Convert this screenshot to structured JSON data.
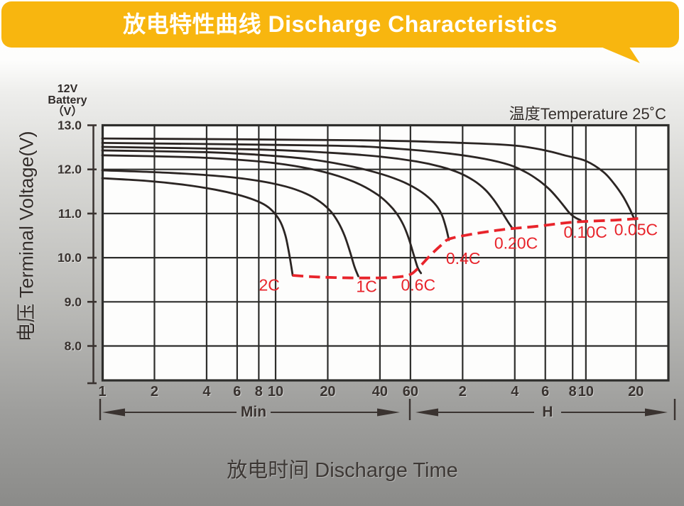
{
  "banner": {
    "title": "放电特性曲线 Discharge Characteristics",
    "color": "#F8B60F"
  },
  "battery_label": {
    "line1": "12V",
    "line2": "Battery",
    "line3": "（V）"
  },
  "temperature_note": "温度Temperature 25˚C",
  "y_axis_title": "电压 Terminal Voltage(V)",
  "x_axis_title": "放电时间 Discharge Time",
  "range_labels": {
    "minutes": "Min",
    "hours": "H"
  },
  "chart_data": {
    "type": "line",
    "x_scale": "log-time-minutes",
    "xlim_minutes": [
      1,
      1887
    ],
    "ylim": [
      7.29,
      13
    ],
    "grid": true,
    "x_ticks": [
      {
        "label": "1",
        "t": 1
      },
      {
        "label": "2",
        "t": 2
      },
      {
        "label": "4",
        "t": 4
      },
      {
        "label": "6",
        "t": 6
      },
      {
        "label": "8",
        "t": 8
      },
      {
        "label": "10",
        "t": 10
      },
      {
        "label": "20",
        "t": 20
      },
      {
        "label": "40",
        "t": 40
      },
      {
        "label": "60",
        "t": 60
      },
      {
        "label": "2",
        "t": 120
      },
      {
        "label": "4",
        "t": 240
      },
      {
        "label": "6",
        "t": 360
      },
      {
        "label": "8",
        "t": 480
      },
      {
        "label": "10",
        "t": 600
      },
      {
        "label": "20",
        "t": 1200
      }
    ],
    "y_ticks": [
      {
        "label": "13.0",
        "v": 13
      },
      {
        "label": "12.0",
        "v": 12
      },
      {
        "label": "11.0",
        "v": 11
      },
      {
        "label": "10.0",
        "v": 10
      },
      {
        "label": "9.0",
        "v": 9
      },
      {
        "label": "8.0",
        "v": 8
      }
    ],
    "series": [
      {
        "name": "2C",
        "label_at": [
          9.2,
          9.4
        ],
        "points": [
          [
            1,
            11.8
          ],
          [
            1.8,
            11.74
          ],
          [
            3,
            11.65
          ],
          [
            4.5,
            11.54
          ],
          [
            6,
            11.43
          ],
          [
            7.5,
            11.31
          ],
          [
            8.8,
            11.18
          ],
          [
            9.8,
            11.02
          ],
          [
            10.7,
            10.8
          ],
          [
            11.4,
            10.5
          ],
          [
            11.9,
            10.15
          ],
          [
            12.3,
            9.82
          ],
          [
            12.55,
            9.6
          ]
        ]
      },
      {
        "name": "1C",
        "label_at": [
          33.5,
          9.37
        ],
        "points": [
          [
            1,
            11.98
          ],
          [
            2.5,
            11.92
          ],
          [
            5,
            11.84
          ],
          [
            8,
            11.74
          ],
          [
            11.5,
            11.61
          ],
          [
            15,
            11.45
          ],
          [
            18,
            11.27
          ],
          [
            20.8,
            11.05
          ],
          [
            23,
            10.8
          ],
          [
            25,
            10.5
          ],
          [
            26.8,
            10.15
          ],
          [
            28.5,
            9.8
          ],
          [
            30,
            9.58
          ]
        ]
      },
      {
        "name": "0.6C",
        "label_at": [
          66.5,
          9.4
        ],
        "points": [
          [
            1,
            12.32
          ],
          [
            3,
            12.28
          ],
          [
            6,
            12.22
          ],
          [
            10,
            12.14
          ],
          [
            16,
            12.01
          ],
          [
            23,
            11.85
          ],
          [
            31,
            11.65
          ],
          [
            39,
            11.42
          ],
          [
            45,
            11.21
          ],
          [
            50,
            11.0
          ],
          [
            54.5,
            10.75
          ],
          [
            58.5,
            10.45
          ],
          [
            62.5,
            10.08
          ],
          [
            66,
            9.78
          ],
          [
            69,
            9.65
          ]
        ]
      },
      {
        "name": "0.4C",
        "label_at": [
          121,
          10.0
        ],
        "points": [
          [
            1,
            12.43
          ],
          [
            4,
            12.39
          ],
          [
            8,
            12.33
          ],
          [
            15,
            12.24
          ],
          [
            25,
            12.1
          ],
          [
            38,
            11.93
          ],
          [
            52,
            11.75
          ],
          [
            65,
            11.56
          ],
          [
            76,
            11.37
          ],
          [
            85,
            11.17
          ],
          [
            91.5,
            10.95
          ],
          [
            96.5,
            10.66
          ],
          [
            100,
            10.4
          ]
        ]
      },
      {
        "name": "0.20C",
        "label_at": [
          244,
          10.35
        ],
        "points": [
          [
            1,
            12.51
          ],
          [
            8,
            12.45
          ],
          [
            20,
            12.38
          ],
          [
            40,
            12.29
          ],
          [
            65,
            12.18
          ],
          [
            90,
            12.06
          ],
          [
            115,
            11.92
          ],
          [
            140,
            11.74
          ],
          [
            162,
            11.54
          ],
          [
            180,
            11.33
          ],
          [
            196,
            11.12
          ],
          [
            210,
            10.93
          ],
          [
            222,
            10.78
          ],
          [
            233,
            10.66
          ]
        ]
      },
      {
        "name": "0.10C",
        "label_at": [
          613,
          10.6
        ],
        "points": [
          [
            1,
            12.6
          ],
          [
            20,
            12.54
          ],
          [
            50,
            12.47
          ],
          [
            100,
            12.36
          ],
          [
            160,
            12.24
          ],
          [
            224,
            12.1
          ],
          [
            280,
            11.93
          ],
          [
            330,
            11.75
          ],
          [
            380,
            11.55
          ],
          [
            425,
            11.34
          ],
          [
            465,
            11.15
          ],
          [
            500,
            11.0
          ],
          [
            540,
            10.9
          ],
          [
            575,
            10.85
          ]
        ]
      },
      {
        "name": "0.05C",
        "label_at": [
          1201,
          10.65
        ],
        "points": [
          [
            1,
            12.7
          ],
          [
            30,
            12.66
          ],
          [
            120,
            12.6
          ],
          [
            240,
            12.54
          ],
          [
            360,
            12.43
          ],
          [
            475,
            12.31
          ],
          [
            618,
            12.19
          ],
          [
            780,
            11.94
          ],
          [
            900,
            11.67
          ],
          [
            1010,
            11.39
          ],
          [
            1100,
            11.12
          ],
          [
            1155,
            10.94
          ],
          [
            1180,
            10.87
          ]
        ]
      }
    ],
    "cutoff_line": {
      "style": "dashed",
      "color": "#e8242b",
      "points": [
        [
          12.5,
          9.6
        ],
        [
          16,
          9.57
        ],
        [
          22,
          9.55
        ],
        [
          32,
          9.54
        ],
        [
          45,
          9.55
        ],
        [
          58,
          9.6
        ],
        [
          66,
          9.75
        ],
        [
          78,
          10.05
        ],
        [
          90,
          10.28
        ],
        [
          100,
          10.42
        ],
        [
          130,
          10.52
        ],
        [
          190,
          10.62
        ],
        [
          232,
          10.66
        ],
        [
          320,
          10.71
        ],
        [
          473,
          10.79
        ],
        [
          600,
          10.82
        ],
        [
          900,
          10.85
        ],
        [
          1175,
          10.88
        ],
        [
          1330,
          10.9
        ]
      ]
    }
  }
}
